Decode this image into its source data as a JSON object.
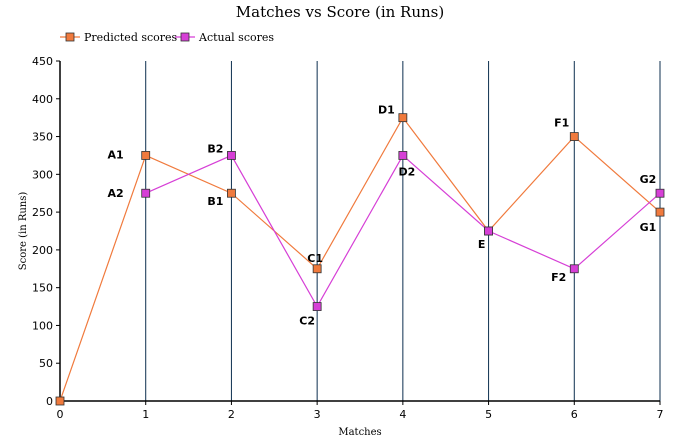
{
  "chart_data": {
    "type": "line",
    "title": "Matches vs Score (in Runs)",
    "xlabel": "Matches",
    "ylabel": "Score (in Runs)",
    "xlim": [
      0,
      7
    ],
    "ylim": [
      0,
      450
    ],
    "x_ticks": [
      0,
      1,
      2,
      3,
      4,
      5,
      6,
      7
    ],
    "y_ticks": [
      0,
      50,
      100,
      150,
      200,
      250,
      300,
      350,
      400,
      450
    ],
    "grid": "vertical",
    "legend_position": "top-left",
    "series": [
      {
        "name": "Predicted scores",
        "color": "#f07a3d",
        "x": [
          0,
          1,
          2,
          3,
          4,
          5,
          6,
          7
        ],
        "values": [
          0,
          325,
          275,
          175,
          375,
          225,
          350,
          250
        ],
        "labels": [
          "",
          "A1",
          "B1",
          "C1",
          "D1",
          "E",
          "F1",
          "G1"
        ]
      },
      {
        "name": "Actual scores",
        "color": "#d63fd6",
        "x": [
          1,
          2,
          3,
          4,
          5,
          6,
          7
        ],
        "values": [
          275,
          325,
          125,
          325,
          225,
          175,
          275
        ],
        "labels": [
          "A2",
          "B2",
          "C2",
          "D2",
          "",
          "F2",
          "G2"
        ]
      }
    ]
  }
}
